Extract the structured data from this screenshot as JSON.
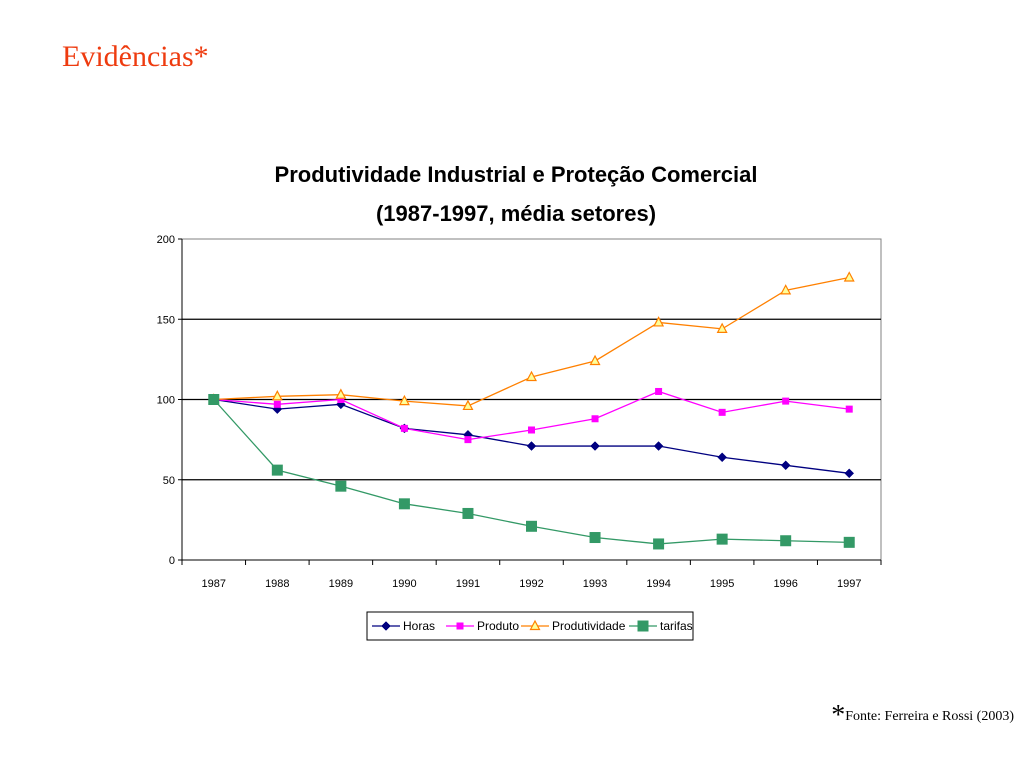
{
  "slide": {
    "title": "Evidências*"
  },
  "footnote": {
    "star": "*",
    "text": "Fonte: Ferreira e Rossi (2003)"
  },
  "chart_data": {
    "type": "line",
    "title_line1": "Produtividade Industrial e Proteção Comercial",
    "title_line2": "(1987-1997, média setores)",
    "categories": [
      "1987",
      "1988",
      "1989",
      "1990",
      "1991",
      "1992",
      "1993",
      "1994",
      "1995",
      "1996",
      "1997"
    ],
    "ylim": [
      0,
      200
    ],
    "yticks": [
      0,
      50,
      100,
      150,
      200
    ],
    "grid": "horizontal major gridlines at 50, 100, 150",
    "legend": "bottom",
    "series": [
      {
        "name": "Horas",
        "color": "#000080",
        "marker": "diamond",
        "values": [
          100,
          94,
          97,
          82,
          78,
          71,
          71,
          71,
          64,
          59,
          54
        ]
      },
      {
        "name": "Produto",
        "color": "#ff00ff",
        "marker": "square",
        "values": [
          100,
          97,
          100,
          82,
          75,
          81,
          88,
          105,
          92,
          99,
          94
        ]
      },
      {
        "name": "Produtividade",
        "color": "#ff8000",
        "marker": "triangle",
        "values": [
          100,
          102,
          103,
          99,
          96,
          114,
          124,
          148,
          144,
          168,
          176
        ]
      },
      {
        "name": "tarifas",
        "color": "#339966",
        "marker": "square-large",
        "values": [
          100,
          56,
          46,
          35,
          29,
          21,
          14,
          10,
          13,
          12,
          11
        ]
      }
    ]
  }
}
